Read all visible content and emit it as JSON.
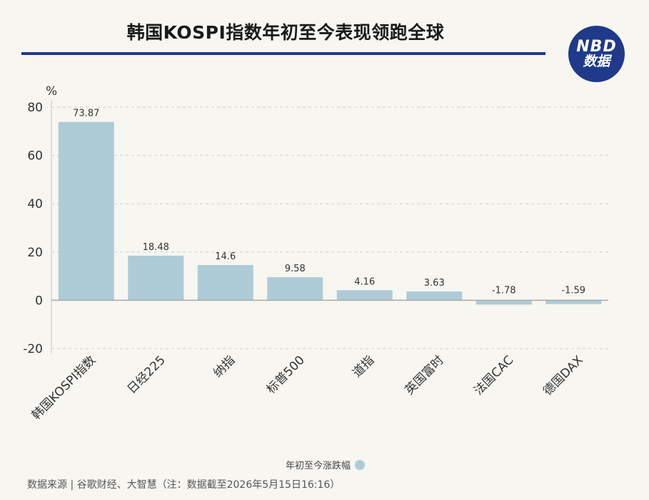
{
  "title": "韩国KOSPI指数年初至今表现领跑全球",
  "logo": {
    "line1": "NBD",
    "line2": "数据"
  },
  "source": "数据来源 | 谷歌财经、大智慧（注：数据截至2026年5月15日16:16）",
  "colors": {
    "bar": "#aecbd8",
    "title_rule": "#1f3a8a",
    "logo_bg": "#1f3a8a"
  },
  "chart_data": {
    "type": "bar",
    "unit": "%",
    "categories": [
      "韩国KOSPI指数",
      "日经225",
      "纳指",
      "标普500",
      "道指",
      "英国富时",
      "法国CAC",
      "德国DAX"
    ],
    "series": [
      {
        "name": "年初至今涨跌幅",
        "values": [
          73.87,
          18.48,
          14.6,
          9.58,
          4.16,
          3.63,
          -1.78,
          -1.59
        ]
      }
    ],
    "value_labels": [
      "73.87",
      "18.48",
      "14.6",
      "9.58",
      "4.16",
      "3.63",
      "-1.78",
      "-1.59"
    ],
    "ylim": [
      -20,
      80
    ],
    "yticks": [
      80,
      60,
      40,
      20,
      0,
      -20
    ],
    "grid": true,
    "legend": "bottom-center"
  }
}
